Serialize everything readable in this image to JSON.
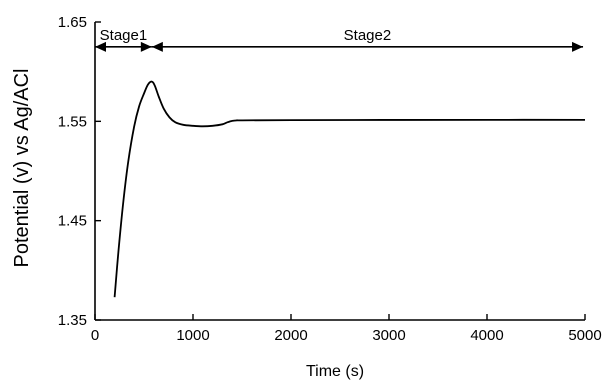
{
  "chart_data": {
    "type": "line",
    "xlabel": "Time (s)",
    "ylabel": "Potential (v) vs Ag/ACl",
    "xlim": [
      0,
      5000
    ],
    "ylim": [
      1.35,
      1.65
    ],
    "xticks": [
      0,
      1000,
      2000,
      3000,
      4000,
      5000
    ],
    "xtick_labels": [
      "0",
      "1000",
      "2000",
      "3000",
      "4000",
      "5000"
    ],
    "yticks": [
      1.35,
      1.45,
      1.55,
      1.65
    ],
    "ytick_labels": [
      "1.35",
      "1.45",
      "1.55",
      "1.65"
    ],
    "grid": false,
    "annotations": [
      {
        "label": "Stage1",
        "x_start": 0,
        "x_end": 580,
        "y": 1.625
      },
      {
        "label": "Stage2",
        "x_start": 580,
        "x_end": 4980,
        "y": 1.625
      }
    ],
    "series": [
      {
        "color": "#000000",
        "x": [
          200,
          240,
          290,
          340,
          400,
          450,
          500,
          540,
          580,
          610,
          650,
          700,
          760,
          820,
          900,
          1000,
          1100,
          1200,
          1300,
          1350,
          1400,
          1450,
          1500,
          2000,
          3000,
          4000,
          5000
        ],
        "y": [
          1.373,
          1.42,
          1.47,
          1.51,
          1.545,
          1.565,
          1.578,
          1.587,
          1.59,
          1.586,
          1.575,
          1.563,
          1.554,
          1.549,
          1.5465,
          1.5455,
          1.545,
          1.5455,
          1.547,
          1.549,
          1.5505,
          1.551,
          1.551,
          1.5512,
          1.5514,
          1.5515,
          1.5515
        ]
      }
    ]
  }
}
